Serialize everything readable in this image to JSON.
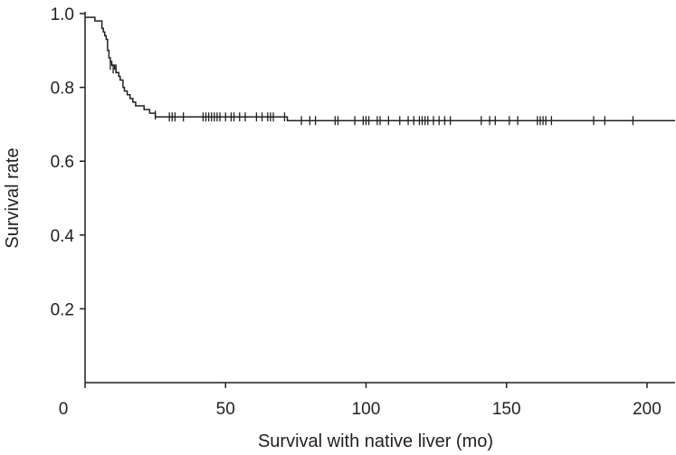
{
  "chart_data": {
    "type": "line",
    "subtype": "kaplan-meier-step",
    "title": "",
    "xlabel": "Survival with native liver (mo)",
    "ylabel": "Survival rate",
    "xlim": [
      0,
      210
    ],
    "ylim": [
      0,
      1.0
    ],
    "xticks": [
      0,
      50,
      100,
      150,
      200
    ],
    "yticks": [
      0.2,
      0.4,
      0.6,
      0.8,
      1.0
    ],
    "xtick_labels": [
      "0",
      "50",
      "100",
      "150",
      "200"
    ],
    "ytick_labels": [
      "0.2",
      "0.4",
      "0.6",
      "0.8",
      "1.0"
    ],
    "grid": false,
    "legend": "none",
    "line_color": "#231f20",
    "series": [
      {
        "steps": [
          [
            0,
            0.99
          ],
          [
            3,
            0.99
          ],
          [
            3.5,
            0.98
          ],
          [
            5.5,
            0.98
          ],
          [
            6,
            0.96
          ],
          [
            6.5,
            0.95
          ],
          [
            7,
            0.94
          ],
          [
            7.5,
            0.93
          ],
          [
            8,
            0.9
          ],
          [
            8.5,
            0.88
          ],
          [
            9,
            0.87
          ],
          [
            9.5,
            0.86
          ],
          [
            10.5,
            0.85
          ],
          [
            11,
            0.84
          ],
          [
            12,
            0.83
          ],
          [
            12.5,
            0.82
          ],
          [
            13.5,
            0.8
          ],
          [
            14,
            0.79
          ],
          [
            15,
            0.78
          ],
          [
            16,
            0.77
          ],
          [
            17,
            0.76
          ],
          [
            18,
            0.75
          ],
          [
            21,
            0.74
          ],
          [
            23,
            0.73
          ],
          [
            25,
            0.72
          ],
          [
            71,
            0.72
          ],
          [
            72,
            0.71
          ],
          [
            210,
            0.71
          ]
        ],
        "censored": [
          [
            9,
            0.86
          ],
          [
            10,
            0.85
          ],
          [
            11,
            0.85
          ],
          [
            25,
            0.725
          ],
          [
            30,
            0.72
          ],
          [
            31,
            0.72
          ],
          [
            32,
            0.72
          ],
          [
            35,
            0.72
          ],
          [
            42,
            0.72
          ],
          [
            43,
            0.72
          ],
          [
            44,
            0.72
          ],
          [
            45,
            0.72
          ],
          [
            46,
            0.72
          ],
          [
            47,
            0.72
          ],
          [
            48,
            0.72
          ],
          [
            50,
            0.72
          ],
          [
            52,
            0.72
          ],
          [
            53,
            0.72
          ],
          [
            55,
            0.72
          ],
          [
            57,
            0.72
          ],
          [
            61,
            0.72
          ],
          [
            63,
            0.72
          ],
          [
            65,
            0.72
          ],
          [
            66,
            0.72
          ],
          [
            67,
            0.72
          ],
          [
            71,
            0.72
          ],
          [
            77,
            0.71
          ],
          [
            80,
            0.71
          ],
          [
            82,
            0.71
          ],
          [
            89,
            0.71
          ],
          [
            90,
            0.71
          ],
          [
            96,
            0.71
          ],
          [
            99,
            0.71
          ],
          [
            100,
            0.71
          ],
          [
            101,
            0.71
          ],
          [
            104,
            0.71
          ],
          [
            105,
            0.71
          ],
          [
            108,
            0.71
          ],
          [
            112,
            0.71
          ],
          [
            115,
            0.71
          ],
          [
            117,
            0.71
          ],
          [
            119,
            0.71
          ],
          [
            120,
            0.71
          ],
          [
            121,
            0.71
          ],
          [
            122,
            0.71
          ],
          [
            124,
            0.71
          ],
          [
            126,
            0.71
          ],
          [
            128,
            0.71
          ],
          [
            130,
            0.71
          ],
          [
            141,
            0.71
          ],
          [
            144,
            0.71
          ],
          [
            146,
            0.71
          ],
          [
            151,
            0.71
          ],
          [
            154,
            0.71
          ],
          [
            161,
            0.71
          ],
          [
            162,
            0.71
          ],
          [
            163,
            0.71
          ],
          [
            164,
            0.71
          ],
          [
            166,
            0.71
          ],
          [
            181,
            0.71
          ],
          [
            185,
            0.71
          ],
          [
            195,
            0.71
          ]
        ]
      }
    ]
  }
}
